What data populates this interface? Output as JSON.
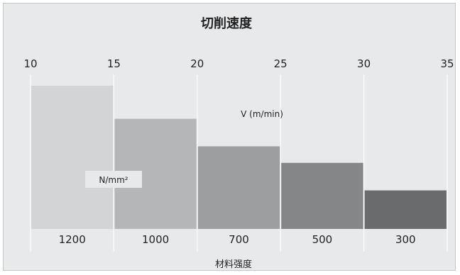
{
  "chart_data": {
    "type": "bar",
    "title": "切削速度",
    "x_top_ticks": [
      "10",
      "15",
      "20",
      "25",
      "30",
      "35"
    ],
    "x_top_label": "V (m/min)",
    "y_label": "N/mm²",
    "categories": [
      "1200",
      "1000",
      "700",
      "500",
      "300"
    ],
    "values": [
      78,
      60,
      45,
      36,
      21
    ],
    "xlabel": "材料强度",
    "colors": [
      "#d3d4d5",
      "#b5b6b7",
      "#9d9e9f",
      "#858687",
      "#6a6b6c"
    ],
    "grid": true,
    "legend": "none"
  }
}
